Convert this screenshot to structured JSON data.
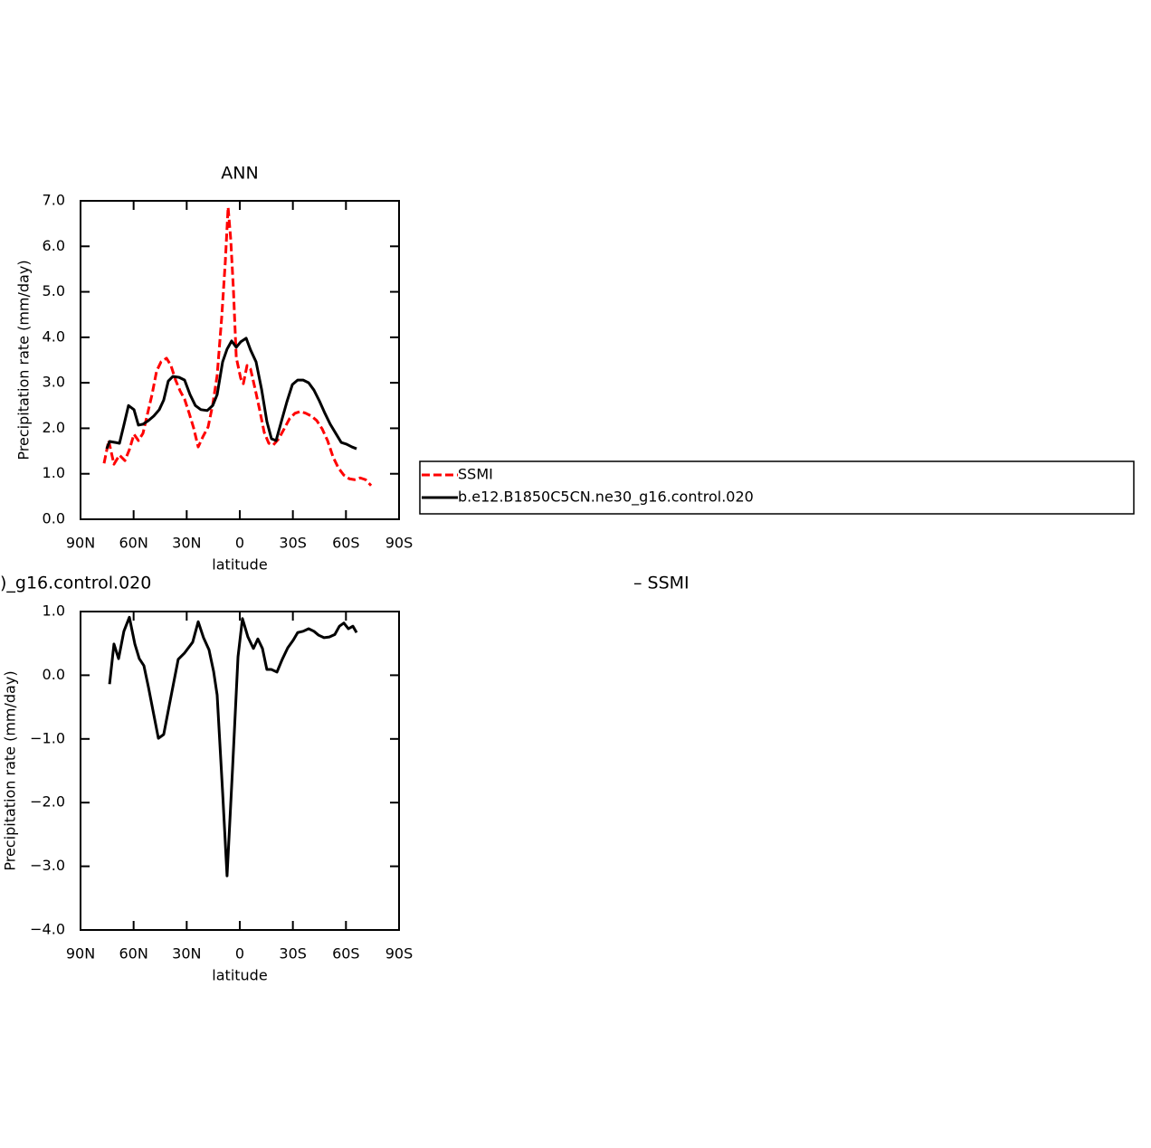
{
  "chart_data": [
    {
      "type": "line",
      "title": "ANN",
      "xlabel": "latitude",
      "ylabel": "Precipitation rate (mm/day)",
      "xlim": [
        90,
        -90
      ],
      "xticks": [
        {
          "value": 90,
          "label": "90N"
        },
        {
          "value": 60,
          "label": "60N"
        },
        {
          "value": 30,
          "label": "30N"
        },
        0,
        {
          "value": -30,
          "label": "30S"
        },
        {
          "value": -60,
          "label": "60S"
        },
        {
          "value": -90,
          "label": "90S"
        }
      ],
      "ylim": [
        0,
        7
      ],
      "yticks": [
        {
          "value": 0,
          "label": "0.0"
        },
        {
          "value": 1,
          "label": "1.0"
        },
        {
          "value": 2,
          "label": "2.0"
        },
        {
          "value": 3,
          "label": "3.0"
        },
        {
          "value": 4,
          "label": "4.0"
        },
        {
          "value": 5,
          "label": "5.0"
        },
        {
          "value": 6,
          "label": "6.0"
        },
        {
          "value": 7,
          "label": "7.0"
        }
      ],
      "legend": "right",
      "series": [
        {
          "name": "SSMI",
          "color": "#ff0000",
          "dashed": true,
          "x": [
            76.7,
            74.1,
            71.1,
            68.0,
            64.9,
            62.4,
            59.8,
            57.3,
            54.7,
            52.2,
            49.6,
            47.0,
            44.5,
            41.4,
            38.9,
            36.3,
            33.7,
            31.2,
            28.6,
            26.1,
            23.5,
            20.9,
            17.9,
            15.3,
            12.8,
            10.2,
            8.2,
            6.6,
            5.1,
            3.6,
            2.0,
            -0.5,
            -2.0,
            -4.1,
            -6.1,
            -8.7,
            -11.3,
            -13.8,
            -16.4,
            -18.9,
            -22.0,
            -25.1,
            -28.1,
            -31.2,
            -34.3,
            -37.3,
            -40.4,
            -43.5,
            -46.5,
            -49.6,
            -52.7,
            -55.7,
            -58.8,
            -61.9,
            -64.9,
            -68.0,
            -71.1,
            -74.2
          ],
          "values": [
            1.23,
            1.73,
            1.21,
            1.41,
            1.29,
            1.53,
            1.87,
            1.73,
            1.89,
            2.31,
            2.74,
            3.26,
            3.46,
            3.54,
            3.38,
            3.06,
            2.82,
            2.64,
            2.33,
            2.01,
            1.59,
            1.81,
            2.03,
            2.52,
            3.16,
            4.45,
            5.65,
            6.86,
            6.14,
            5.05,
            3.56,
            3.1,
            2.98,
            3.38,
            3.3,
            2.86,
            2.39,
            1.91,
            1.67,
            1.63,
            1.77,
            1.99,
            2.21,
            2.33,
            2.37,
            2.33,
            2.27,
            2.17,
            1.99,
            1.73,
            1.37,
            1.13,
            0.97,
            0.89,
            0.87,
            0.91,
            0.87,
            0.74
          ]
        },
        {
          "name": "b.e12.B1850C5CN.ne30_g16.control.020",
          "color": "#000000",
          "dashed": false,
          "x": [
            75.2,
            73.6,
            70.6,
            68.0,
            65.5,
            62.9,
            59.8,
            57.3,
            54.7,
            51.6,
            48.6,
            45.5,
            43.0,
            40.4,
            37.8,
            34.3,
            31.2,
            28.1,
            25.1,
            22.0,
            18.4,
            15.3,
            12.8,
            9.7,
            7.2,
            4.6,
            2.0,
            -0.5,
            -3.6,
            -6.1,
            -9.2,
            -12.3,
            -15.3,
            -17.9,
            -20.5,
            -23.5,
            -26.6,
            -29.7,
            -32.7,
            -35.8,
            -38.9,
            -41.9,
            -45.0,
            -48.1,
            -51.1,
            -54.2,
            -57.3,
            -60.4,
            -63.4,
            -66.0
          ],
          "values": [
            1.55,
            1.71,
            1.69,
            1.67,
            2.07,
            2.5,
            2.41,
            2.07,
            2.09,
            2.17,
            2.27,
            2.41,
            2.62,
            3.04,
            3.14,
            3.12,
            3.06,
            2.74,
            2.5,
            2.41,
            2.39,
            2.5,
            2.74,
            3.46,
            3.74,
            3.92,
            3.78,
            3.9,
            3.98,
            3.72,
            3.46,
            2.86,
            2.15,
            1.77,
            1.73,
            2.15,
            2.58,
            2.96,
            3.06,
            3.06,
            3.0,
            2.84,
            2.6,
            2.33,
            2.09,
            1.89,
            1.69,
            1.65,
            1.59,
            1.55
          ]
        }
      ]
    },
    {
      "type": "line",
      "title_left": ")_g16.control.020",
      "title_right": "– SSMI",
      "xlabel": "latitude",
      "ylabel": "Precipitation rate (mm/day)",
      "xlim": [
        90,
        -90
      ],
      "xticks": [
        {
          "value": 90,
          "label": "90N"
        },
        {
          "value": 60,
          "label": "60N"
        },
        {
          "value": 30,
          "label": "30N"
        },
        0,
        {
          "value": -30,
          "label": "30S"
        },
        {
          "value": -60,
          "label": "60S"
        },
        {
          "value": -90,
          "label": "90S"
        }
      ],
      "ylim": [
        -4,
        1
      ],
      "yticks": [
        {
          "value": -4,
          "label": "−4.0"
        },
        {
          "value": -3,
          "label": "−3.0"
        },
        {
          "value": -2,
          "label": "−2.0"
        },
        {
          "value": -1,
          "label": "−1.0"
        },
        {
          "value": 0,
          "label": "0.0"
        },
        {
          "value": 1,
          "label": "1.0"
        }
      ],
      "series": [
        {
          "color": "#000000",
          "dashed": false,
          "x": [
            73.6,
            71.1,
            68.5,
            65.5,
            62.4,
            59.3,
            56.8,
            54.2,
            51.6,
            48.6,
            46.0,
            43.0,
            39.9,
            34.8,
            31.2,
            26.6,
            23.5,
            20.5,
            17.4,
            14.8,
            12.8,
            9.7,
            7.2,
            4.1,
            1.0,
            -1.5,
            -4.6,
            -7.7,
            -10.2,
            -12.8,
            -15.3,
            -17.9,
            -21.0,
            -24.0,
            -27.1,
            -30.2,
            -32.7,
            -35.8,
            -38.9,
            -41.9,
            -44.5,
            -47.6,
            -50.6,
            -53.7,
            -56.3,
            -58.8,
            -61.4,
            -63.9,
            -66.0
          ],
          "values": [
            -0.14,
            0.49,
            0.26,
            0.69,
            0.91,
            0.49,
            0.26,
            0.15,
            -0.19,
            -0.62,
            -0.99,
            -0.93,
            -0.48,
            0.25,
            0.35,
            0.52,
            0.84,
            0.59,
            0.4,
            0.06,
            -0.31,
            -1.84,
            -3.15,
            -1.47,
            0.29,
            0.89,
            0.6,
            0.42,
            0.57,
            0.42,
            0.09,
            0.09,
            0.05,
            0.25,
            0.43,
            0.55,
            0.67,
            0.69,
            0.73,
            0.69,
            0.63,
            0.59,
            0.6,
            0.64,
            0.77,
            0.82,
            0.73,
            0.77,
            0.67
          ]
        }
      ]
    }
  ]
}
